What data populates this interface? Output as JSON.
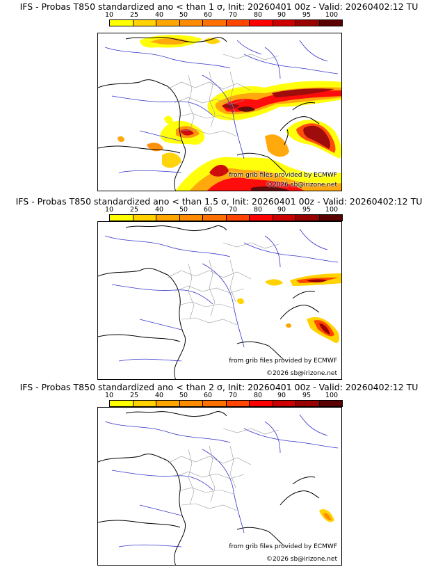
{
  "colors": {
    "scale": [
      "#ffff00",
      "#ffd200",
      "#ffa500",
      "#ff8c00",
      "#ff7000",
      "#ff4500",
      "#ff0000",
      "#cc0000",
      "#990000",
      "#5a0000"
    ],
    "coast": "#000000",
    "rivers": "#3333cc",
    "borders": "#999999"
  },
  "scale_ticks": [
    "10",
    "25",
    "40",
    "50",
    "60",
    "70",
    "80",
    "90",
    "95",
    "100"
  ],
  "panels": [
    {
      "title": "IFS - Probas T850  standardized ano < than 1 σ, Init: 20260401 00z - Valid: 20260402:12 TU",
      "credit_source": "from grib files provided by ECMWF",
      "credit_copy": "©2026 sb@irizone.net"
    },
    {
      "title": "IFS - Probas T850  standardized ano < than 1.5 σ, Init: 20260401 00z - Valid: 20260402:12 TU",
      "credit_source": "from grib files provided by ECMWF",
      "credit_copy": "©2026 sb@irizone.net"
    },
    {
      "title": "IFS - Probas T850  standardized ano < than 2 σ, Init: 20260401 00z - Valid: 20260402:12 TU",
      "credit_source": "from grib files provided by ECMWF",
      "credit_copy": "©2026 sb@irizone.net"
    }
  ]
}
